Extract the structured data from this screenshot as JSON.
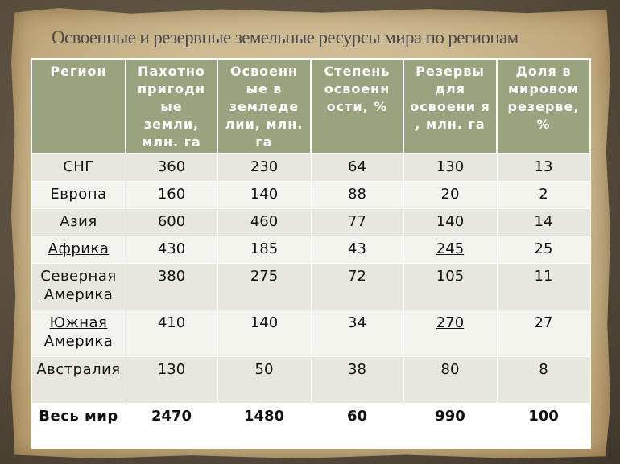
{
  "title": "Освоенные и резервные земельные ресурсы мира по регионам",
  "headers": [
    "Регион",
    "Пахотно пригодн ые земли, млн. га",
    "Освоенн ые в земледе лии, млн. га",
    "Степень освоенн ости, %",
    "Резервы для освоени я , млн. га",
    "Доля в мировом резерве, %"
  ],
  "rows": [
    {
      "region": "СНГ",
      "arable": "360",
      "developed": "230",
      "degree": "64",
      "reserves": "130",
      "share": "13"
    },
    {
      "region": "Европа",
      "arable": "160",
      "developed": "140",
      "degree": "88",
      "reserves": "20",
      "share": "2"
    },
    {
      "region": "Азия",
      "arable": "600",
      "developed": "460",
      "degree": "77",
      "reserves": "140",
      "share": "14"
    },
    {
      "region": "Африка",
      "arable": "430",
      "developed": "185",
      "degree": "43",
      "reserves": "245",
      "share": "25"
    },
    {
      "region": "Северная Америка",
      "arable": "380",
      "developed": "275",
      "degree": "72",
      "reserves": "105",
      "share": "11"
    },
    {
      "region": "Южная Америка",
      "arable": "410",
      "developed": "140",
      "degree": "34",
      "reserves": "270",
      "share": "27"
    },
    {
      "region": "Австралия",
      "arable": "130",
      "developed": "50",
      "degree": "38",
      "reserves": "80",
      "share": "8"
    }
  ],
  "total": {
    "region": "Весь мир",
    "arable": "2470",
    "developed": "1480",
    "degree": "60",
    "reserves": "990",
    "share": "100"
  }
}
